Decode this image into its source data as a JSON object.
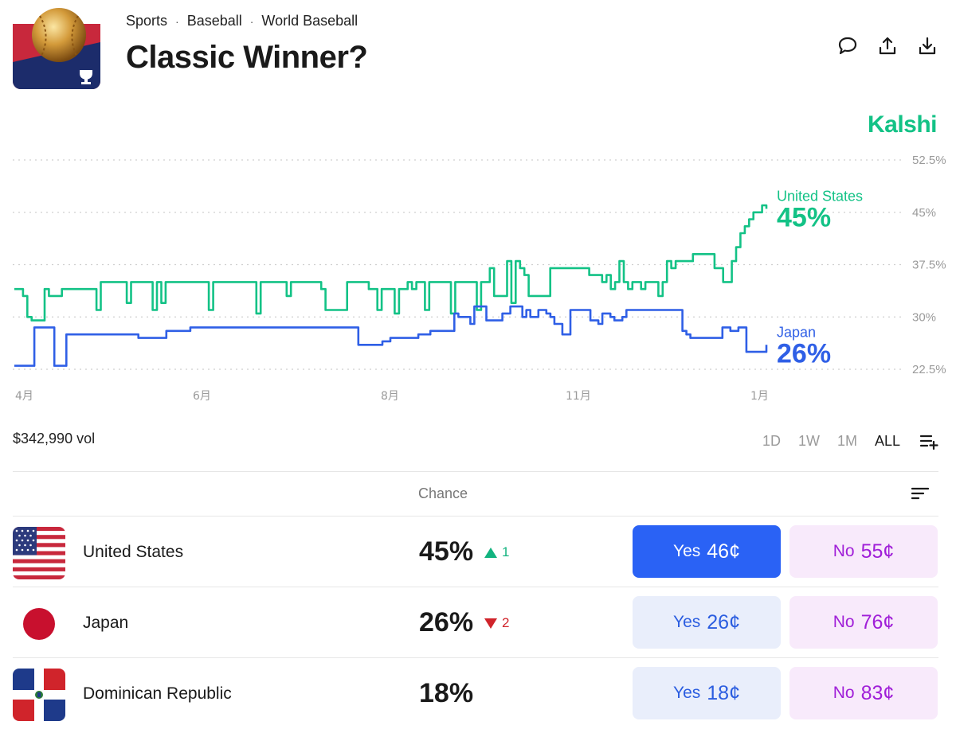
{
  "breadcrumb": [
    "Sports",
    "Baseball",
    "World Baseball"
  ],
  "breadcrumb_separator": "·",
  "title": "Classic Winner?",
  "brand": "Kalshi",
  "header_icons": [
    "comment-icon",
    "share-icon",
    "download-icon"
  ],
  "chart_data": {
    "type": "line",
    "x_tick_labels": [
      "4月",
      "6月",
      "8月",
      "11月",
      "1月"
    ],
    "y_tick_labels": [
      "52.5%",
      "45%",
      "37.5%",
      "30%",
      "22.5%"
    ],
    "ylim": [
      22.5,
      52.5
    ],
    "grid": true,
    "series": [
      {
        "name": "United States",
        "label_value": "45%",
        "color": "#13c286",
        "values": [
          34,
          34,
          33,
          30,
          29.5,
          29.5,
          29.5,
          34,
          33,
          33,
          33,
          34,
          34,
          34,
          34,
          34,
          34,
          34,
          34,
          31,
          35,
          35,
          35,
          35,
          35,
          35,
          32,
          35,
          35,
          35,
          35,
          35,
          31,
          35,
          32,
          35,
          35,
          35,
          35,
          35,
          35,
          35,
          35,
          35,
          35,
          31,
          35,
          35,
          35,
          35,
          35,
          35,
          35,
          35,
          35,
          35,
          30.5,
          35,
          35,
          35,
          35,
          35,
          35,
          33,
          35,
          35,
          35,
          35,
          35,
          35,
          35,
          34,
          31,
          31,
          31,
          31,
          31,
          35,
          35,
          35,
          35,
          35,
          34,
          34,
          31,
          34,
          34,
          34,
          30.5,
          34,
          34,
          35,
          34,
          35,
          35,
          31,
          35,
          35,
          35,
          35,
          35,
          30.5,
          35,
          35,
          35,
          35,
          35,
          31,
          35,
          35,
          37,
          33,
          33,
          33,
          38,
          32,
          38,
          37,
          36,
          33,
          33,
          33,
          33,
          33,
          37,
          37,
          37,
          37,
          37,
          37,
          37,
          37,
          37,
          36,
          36,
          36,
          35,
          36,
          34,
          35,
          38,
          35,
          34,
          35,
          35,
          34,
          35,
          35,
          35,
          33,
          35,
          38,
          37,
          38,
          38,
          38,
          38,
          39,
          39,
          39,
          39,
          39,
          37,
          37,
          35,
          35,
          38,
          40,
          42,
          43,
          44,
          45,
          45,
          46,
          45.5
        ]
      },
      {
        "name": "Japan",
        "label_value": "26%",
        "color": "#2f5fe6",
        "values": [
          23,
          23,
          23,
          23,
          23,
          28.5,
          28.5,
          28.5,
          28.5,
          28.5,
          23,
          23,
          23,
          27.5,
          27.5,
          27.5,
          27.5,
          27.5,
          27.5,
          27.5,
          27.5,
          27.5,
          27.5,
          27.5,
          27.5,
          27.5,
          27.5,
          27.5,
          27.5,
          27.5,
          27.5,
          27,
          27,
          27,
          27,
          27,
          27,
          27,
          28,
          28,
          28,
          28,
          28,
          28,
          28.5,
          28.5,
          28.5,
          28.5,
          28.5,
          28.5,
          28.5,
          28.5,
          28.5,
          28.5,
          28.5,
          28.5,
          28.5,
          28.5,
          28.5,
          28.5,
          28.5,
          28.5,
          28.5,
          28.5,
          28.5,
          28.5,
          28.5,
          28.5,
          28.5,
          28.5,
          28.5,
          28.5,
          28.5,
          28.5,
          28.5,
          28.5,
          28.5,
          28.5,
          28.5,
          28.5,
          28.5,
          28.5,
          28.5,
          28.5,
          28.5,
          28.5,
          26,
          26,
          26,
          26,
          26,
          26,
          26.5,
          26.5,
          27,
          27,
          27,
          27,
          27,
          27,
          27,
          27.5,
          27.5,
          27.5,
          28,
          28,
          28,
          28,
          28,
          28,
          30.5,
          30,
          30,
          30,
          29,
          31.5,
          31.5,
          31.5,
          29.5,
          29.5,
          29.5,
          29.5,
          30.5,
          30.5,
          31.5,
          31.5,
          31.5,
          30,
          31,
          30,
          30,
          31,
          31,
          30.5,
          30,
          29,
          29,
          27.5,
          27.5,
          31,
          31,
          31,
          31,
          31,
          29.5,
          29.5,
          29,
          30.5,
          30.5,
          30,
          29.5,
          29.5,
          30,
          31,
          31,
          31,
          31,
          31,
          31,
          31,
          31,
          31,
          31,
          31,
          31,
          31,
          31,
          28,
          27.5,
          27,
          27,
          27,
          27,
          27,
          27,
          27,
          27,
          28.5,
          28.5,
          28,
          28,
          28.5,
          28.5,
          25,
          25,
          25,
          25,
          25,
          26
        ]
      }
    ]
  },
  "volume": "$342,990 vol",
  "time_ranges": [
    "1D",
    "1W",
    "1M",
    "ALL"
  ],
  "active_range": "ALL",
  "table_header": {
    "chance": "Chance"
  },
  "outcomes": [
    {
      "name": "United States",
      "chance": "45%",
      "delta": "1",
      "delta_dir": "up",
      "yes_label": "Yes",
      "yes_price": "46¢",
      "no_label": "No",
      "no_price": "55¢"
    },
    {
      "name": "Japan",
      "chance": "26%",
      "delta": "2",
      "delta_dir": "down",
      "yes_label": "Yes",
      "yes_price": "26¢",
      "no_label": "No",
      "no_price": "76¢"
    },
    {
      "name": "Dominican Republic",
      "chance": "18%",
      "delta": "",
      "delta_dir": "",
      "yes_label": "Yes",
      "yes_price": "18¢",
      "no_label": "No",
      "no_price": "83¢"
    }
  ]
}
